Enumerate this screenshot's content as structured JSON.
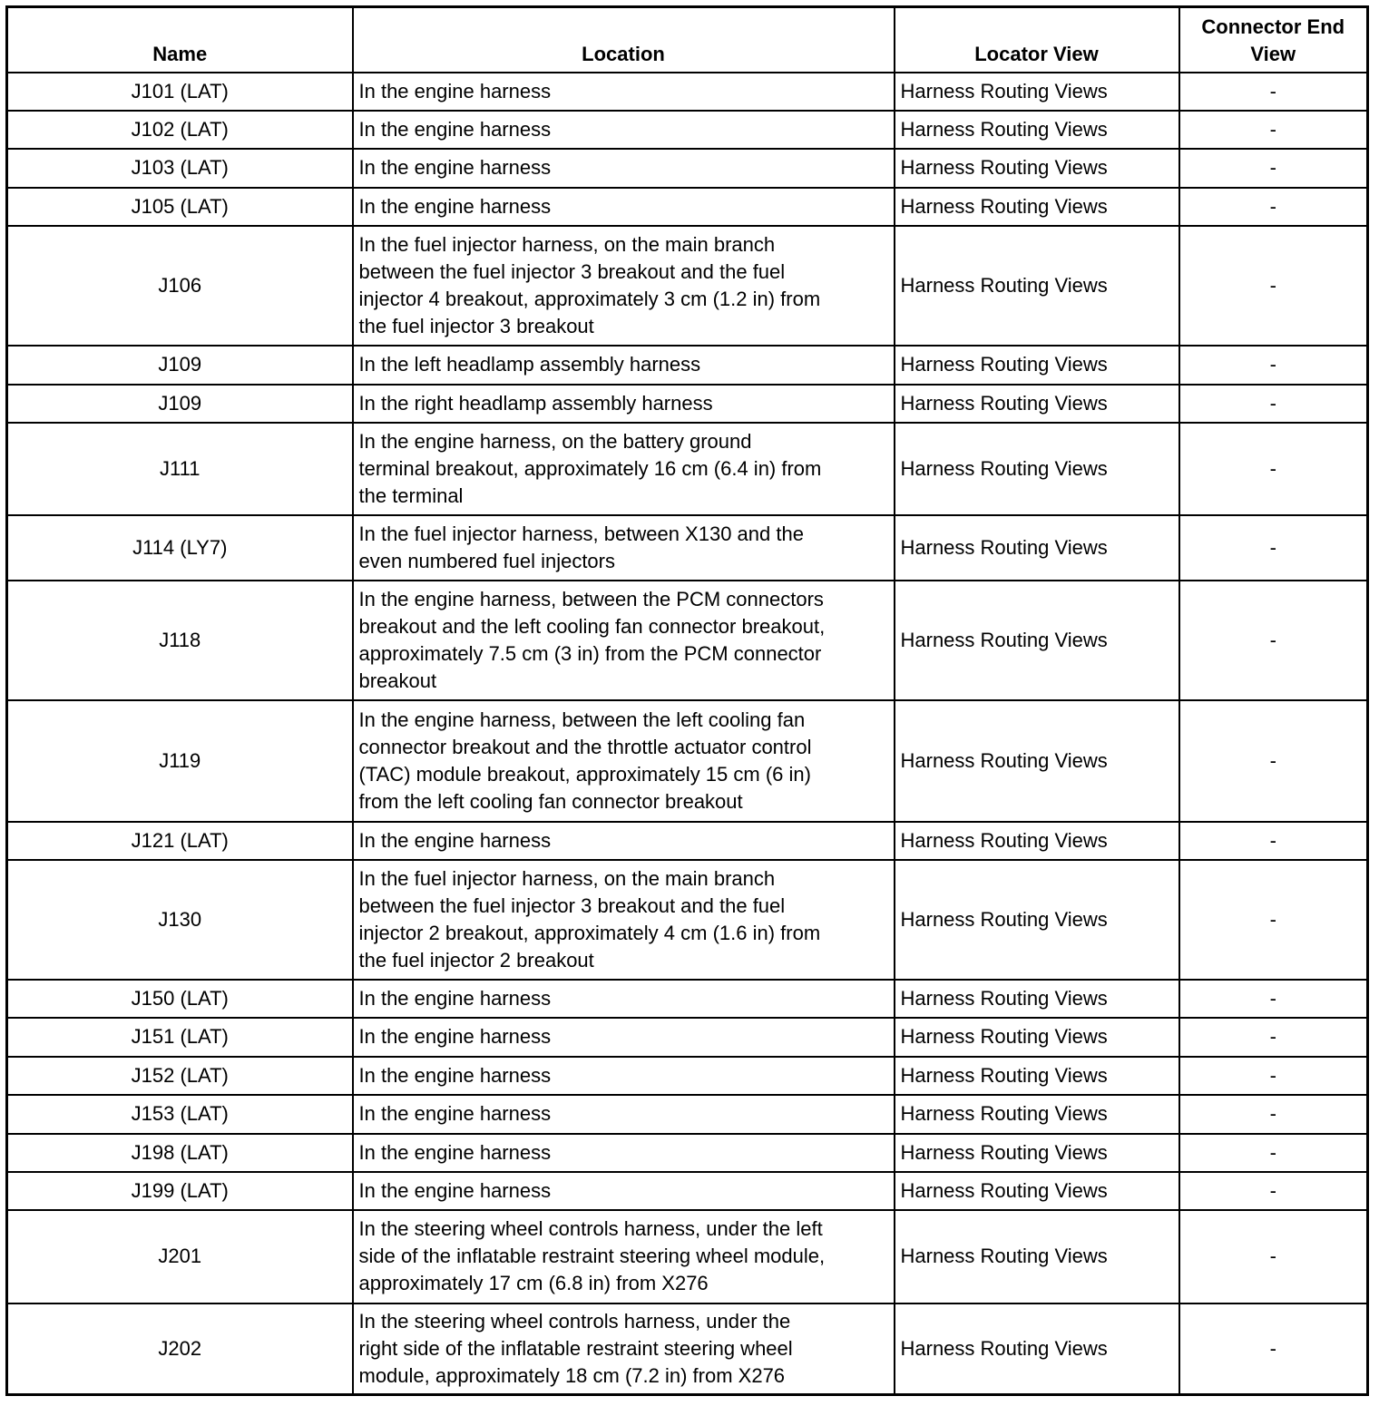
{
  "headers": [
    "Name",
    "Location",
    "Locator View",
    "Connector End View"
  ],
  "rows": [
    {
      "name": "J101 (LAT)",
      "location": "In the engine harness",
      "locator": "Harness Routing Views",
      "end_view": "-"
    },
    {
      "name": "J102 (LAT)",
      "location": "In the engine harness",
      "locator": "Harness Routing Views",
      "end_view": "-"
    },
    {
      "name": "J103 (LAT)",
      "location": "In the engine harness",
      "locator": "Harness Routing Views",
      "end_view": "-"
    },
    {
      "name": "J105 (LAT)",
      "location": "In the engine harness",
      "locator": "Harness Routing Views",
      "end_view": "-"
    },
    {
      "name": "J106",
      "location": "In the fuel injector harness, on the main branch\nbetween the fuel injector 3 breakout and the fuel\ninjector 4 breakout, approximately 3 cm (1.2 in) from\nthe fuel injector 3 breakout",
      "locator": "Harness Routing Views",
      "end_view": "-"
    },
    {
      "name": "J109",
      "location": "In the left headlamp assembly harness",
      "locator": "Harness Routing Views",
      "end_view": "-"
    },
    {
      "name": "J109",
      "location": "In the right headlamp assembly harness",
      "locator": "Harness Routing Views",
      "end_view": "-"
    },
    {
      "name": "J111",
      "location": "In the engine harness, on the battery ground\nterminal breakout, approximately 16 cm (6.4 in) from\nthe terminal",
      "locator": "Harness Routing Views",
      "end_view": "-"
    },
    {
      "name": "J114 (LY7)",
      "location": "In the fuel injector harness, between X130 and the\neven numbered fuel injectors",
      "locator": "Harness Routing Views",
      "end_view": "-"
    },
    {
      "name": "J118",
      "location": "In the engine harness, between the PCM connectors\nbreakout and the left cooling fan connector breakout,\napproximately 7.5 cm (3 in) from the PCM connector\nbreakout",
      "locator": "Harness Routing Views",
      "end_view": "-"
    },
    {
      "name": "J119",
      "location": "In the engine harness, between the left cooling fan\nconnector breakout and the throttle actuator control\n(TAC) module breakout, approximately 15 cm (6 in)\nfrom the left cooling fan connector breakout",
      "locator": "Harness Routing Views",
      "end_view": "-"
    },
    {
      "name": "J121 (LAT)",
      "location": "In the engine harness",
      "locator": "Harness Routing Views",
      "end_view": "-"
    },
    {
      "name": "J130",
      "location": "In the fuel injector harness, on the main branch\nbetween the fuel injector 3 breakout and the fuel\ninjector 2 breakout, approximately 4 cm (1.6 in) from\nthe fuel injector 2 breakout",
      "locator": "Harness Routing Views",
      "end_view": "-"
    },
    {
      "name": "J150 (LAT)",
      "location": "In the engine harness",
      "locator": "Harness Routing Views",
      "end_view": "-"
    },
    {
      "name": "J151 (LAT)",
      "location": "In the engine harness",
      "locator": "Harness Routing Views",
      "end_view": "-"
    },
    {
      "name": "J152 (LAT)",
      "location": "In the engine harness",
      "locator": "Harness Routing Views",
      "end_view": "-"
    },
    {
      "name": "J153 (LAT)",
      "location": "In the engine harness",
      "locator": "Harness Routing Views",
      "end_view": "-"
    },
    {
      "name": "J198 (LAT)",
      "location": "In the engine harness",
      "locator": "Harness Routing Views",
      "end_view": "-"
    },
    {
      "name": "J199 (LAT)",
      "location": "In the engine harness",
      "locator": "Harness Routing Views",
      "end_view": "-"
    },
    {
      "name": "J201",
      "location": "In the steering wheel controls harness, under the left\nside of the inflatable restraint steering wheel module,\napproximately 17 cm (6.8 in) from X276",
      "locator": "Harness Routing Views",
      "end_view": "-"
    },
    {
      "name": "J202",
      "location": "In the steering wheel controls harness, under the\nright side of the inflatable restraint steering wheel\nmodule, approximately 18 cm (7.2 in) from X276",
      "locator": "Harness Routing Views",
      "end_view": "-"
    }
  ]
}
